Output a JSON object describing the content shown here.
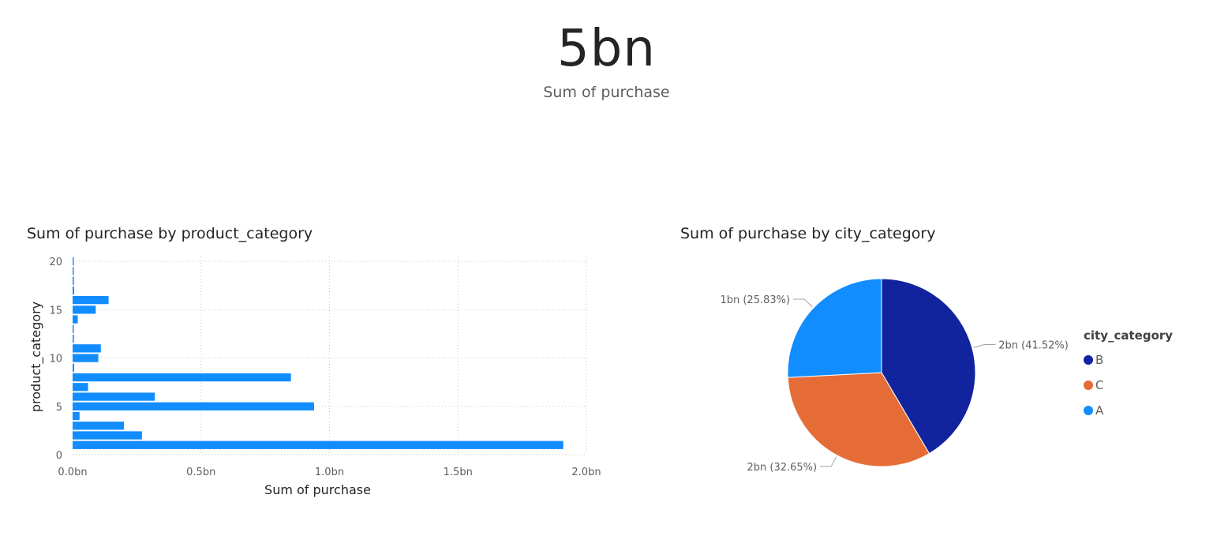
{
  "card": {
    "value": "5bn",
    "label": "Sum of purchase"
  },
  "colors": {
    "bar": "#118dff",
    "B": "#12239e",
    "C": "#e66c37",
    "A": "#118dff"
  },
  "chart_data": [
    {
      "type": "bar",
      "orientation": "horizontal",
      "title": "Sum of purchase by product_category",
      "xlabel": "Sum of purchase",
      "ylabel": "product_category",
      "xlim": [
        0,
        2.0
      ],
      "x_unit": "bn",
      "x_ticks": [
        "0.0bn",
        "0.5bn",
        "1.0bn",
        "1.5bn",
        "2.0bn"
      ],
      "y_ticks": [
        "0",
        "5",
        "10",
        "15",
        "20"
      ],
      "grid": true,
      "categories": [
        1,
        2,
        3,
        4,
        5,
        6,
        7,
        8,
        9,
        10,
        11,
        12,
        13,
        14,
        15,
        16,
        17,
        18,
        19,
        20
      ],
      "values": [
        1.91,
        0.27,
        0.2,
        0.027,
        0.94,
        0.32,
        0.06,
        0.85,
        0.006,
        0.1,
        0.11,
        0.005,
        0.004,
        0.02,
        0.09,
        0.14,
        0.006,
        0.005,
        0.0,
        0.0
      ]
    },
    {
      "type": "pie",
      "title": "Sum of purchase by city_category",
      "legend_title": "city_category",
      "legend_position": "right",
      "slices": [
        {
          "name": "B",
          "value": 41.52,
          "label": "2bn (41.52%)"
        },
        {
          "name": "C",
          "value": 32.65,
          "label": "2bn (32.65%)"
        },
        {
          "name": "A",
          "value": 25.83,
          "label": "1bn (25.83%)"
        }
      ]
    }
  ]
}
